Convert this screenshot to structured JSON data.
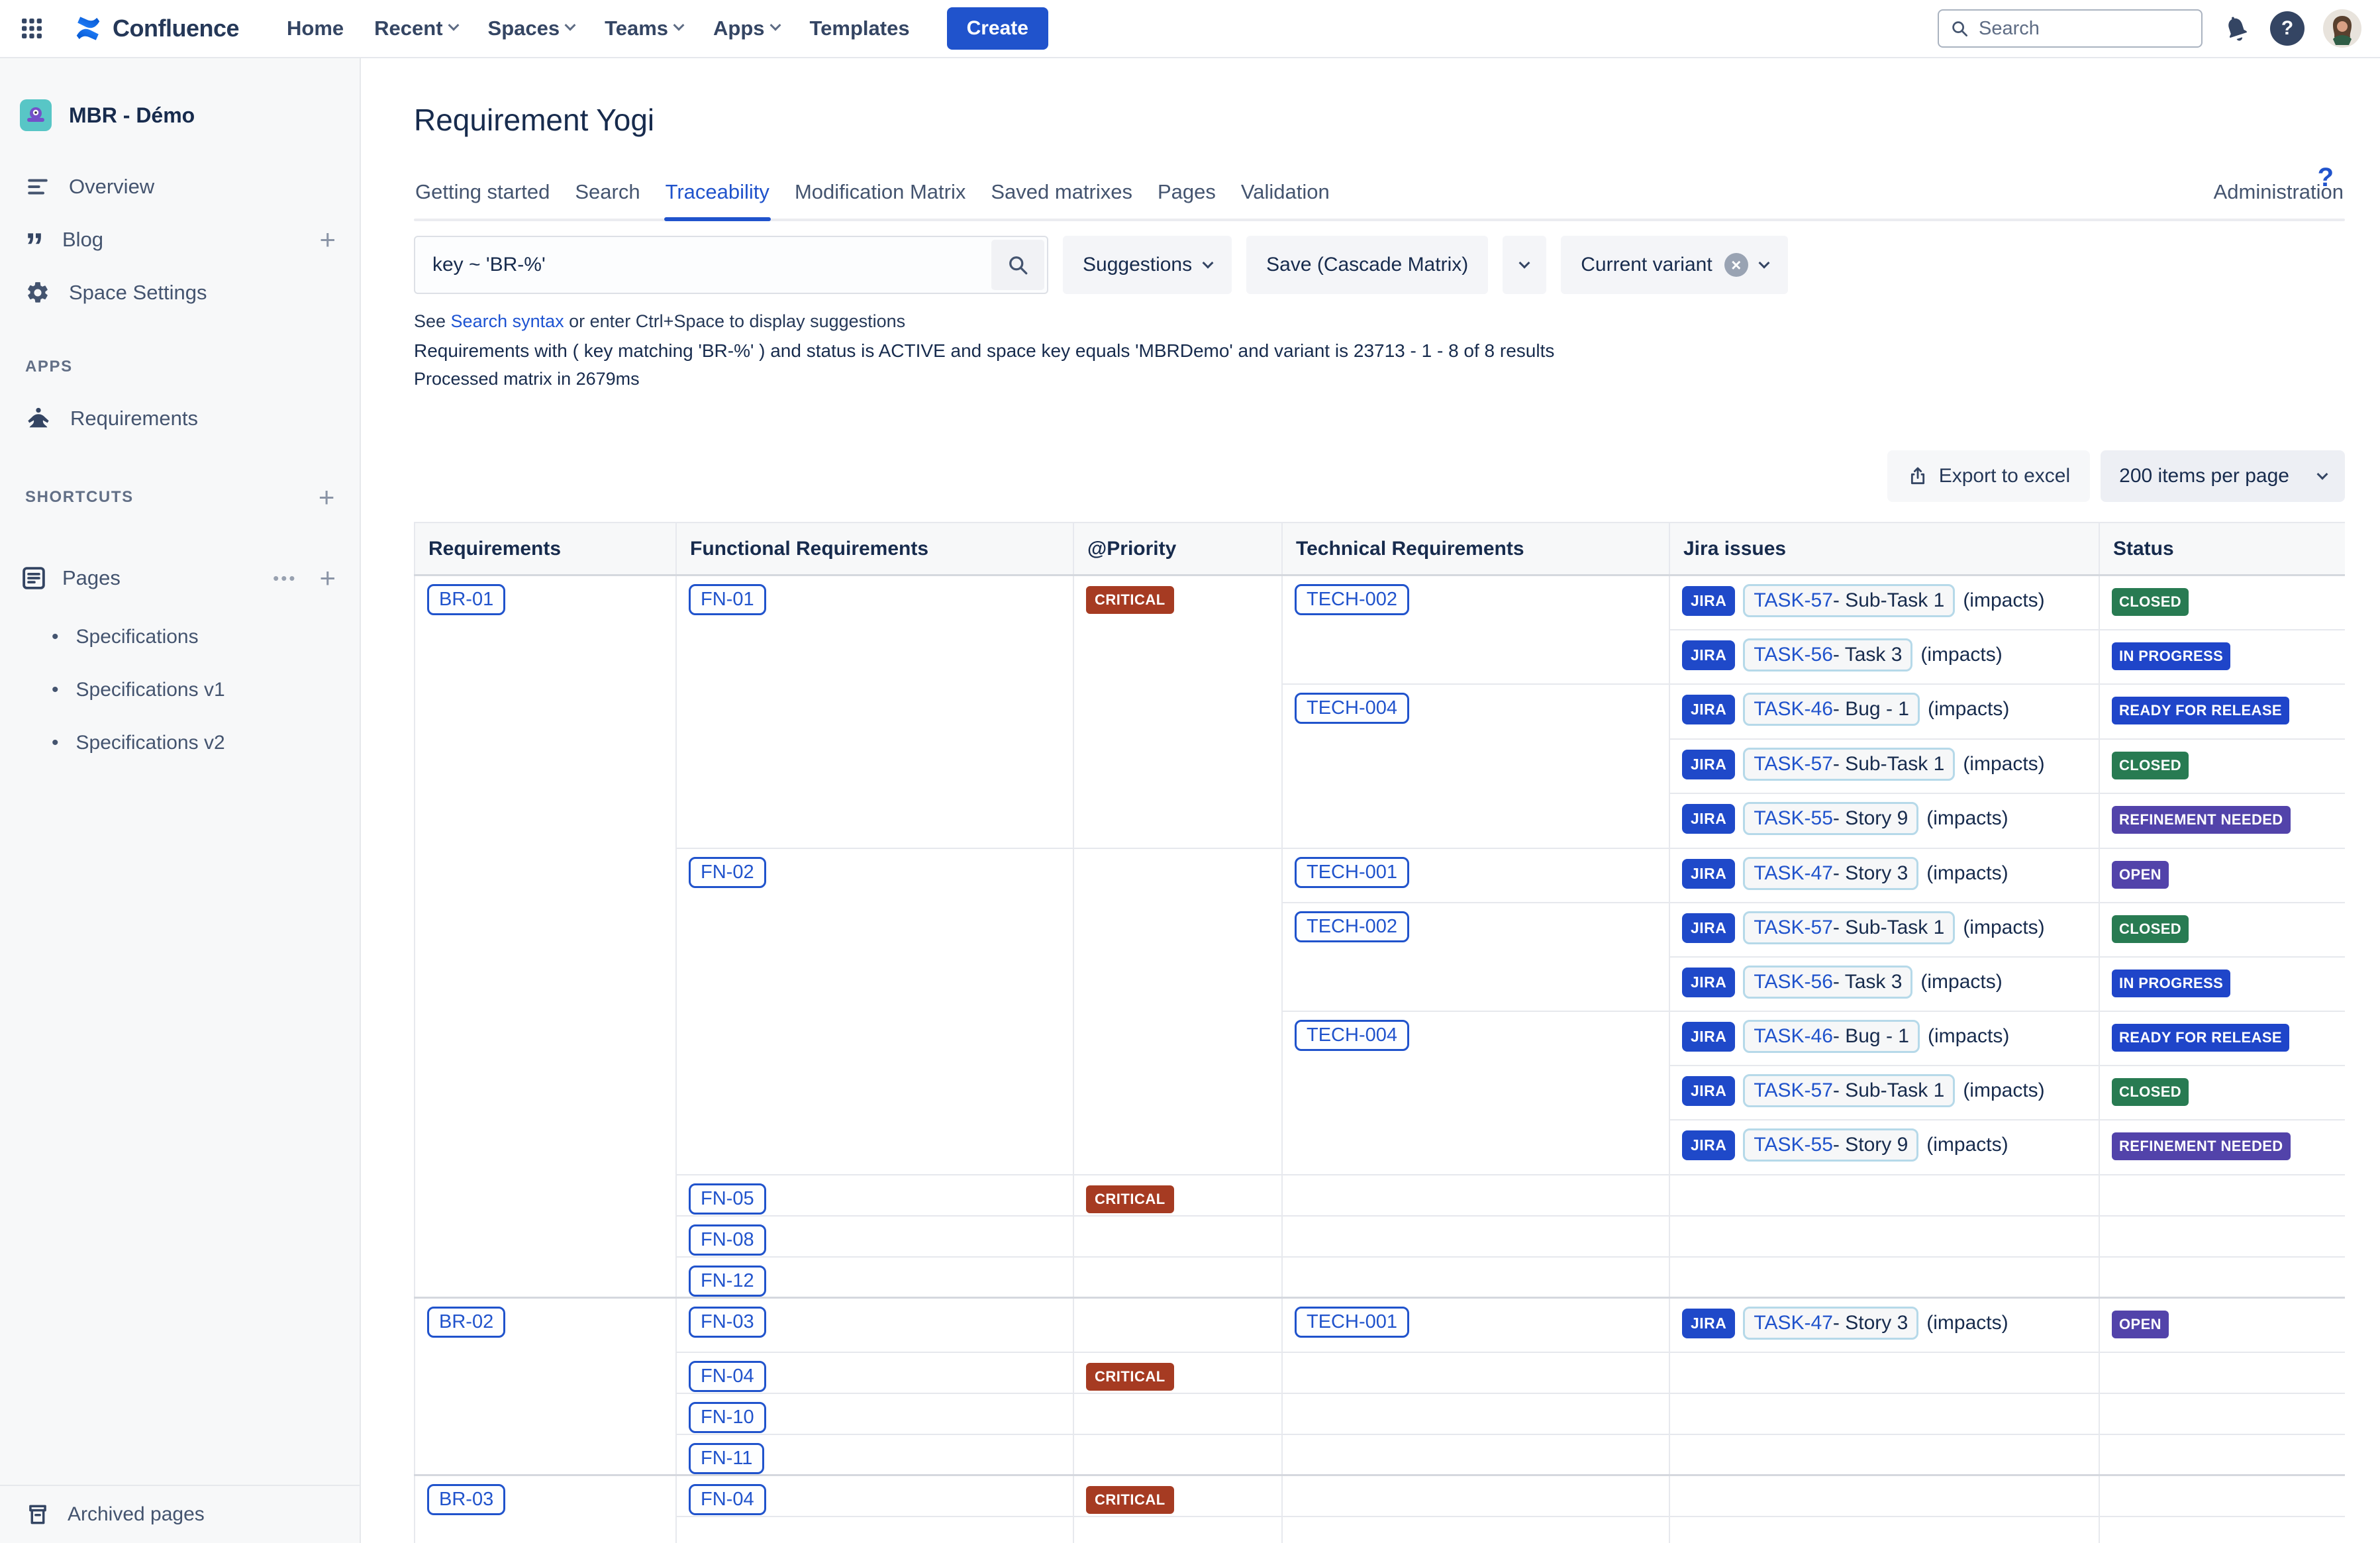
{
  "topnav": {
    "logo_label": "Confluence",
    "menu": [
      {
        "label": "Home",
        "chevron": false
      },
      {
        "label": "Recent",
        "chevron": true
      },
      {
        "label": "Spaces",
        "chevron": true
      },
      {
        "label": "Teams",
        "chevron": true
      },
      {
        "label": "Apps",
        "chevron": true
      },
      {
        "label": "Templates",
        "chevron": false
      }
    ],
    "create_label": "Create",
    "search_placeholder": "Search"
  },
  "sidebar": {
    "space_name": "MBR - Démo",
    "nav_items": [
      {
        "icon": "overview",
        "label": "Overview",
        "plus": false
      },
      {
        "icon": "blog",
        "label": "Blog",
        "plus": true
      },
      {
        "icon": "gear",
        "label": "Space Settings",
        "plus": false
      }
    ],
    "apps_label": "APPS",
    "apps_items": [
      {
        "icon": "requirements",
        "label": "Requirements",
        "plus": false
      }
    ],
    "shortcuts_label": "SHORTCUTS",
    "pages_label": "Pages",
    "pages_items": [
      "Specifications",
      "Specifications v1",
      "Specifications v2"
    ],
    "archived_label": "Archived pages"
  },
  "main": {
    "title": "Requirement Yogi",
    "help_glyph": "?",
    "tabs": [
      "Getting started",
      "Search",
      "Traceability",
      "Modification Matrix",
      "Saved matrixes",
      "Pages",
      "Validation"
    ],
    "active_tab": "Traceability",
    "admin_label": "Administration",
    "search_query": "key ~ 'BR-%'",
    "suggestions_label": "Suggestions",
    "save_label": "Save (Cascade Matrix)",
    "variant_label": "Current variant",
    "hint_prefix": "See ",
    "hint_link": "Search syntax",
    "hint_suffix": " or enter Ctrl+Space to display suggestions",
    "result_line": "Requirements with ( key matching 'BR-%' ) and status is ACTIVE and space key equals 'MBRDemo' and variant is 23713 - 1 - 8 of 8 results",
    "processed_line": "Processed matrix in 2679ms",
    "export_label": "Export to excel",
    "page_size_label": "200 items per page"
  },
  "icons": {
    "plus": "+",
    "more": "•••",
    "clear": "×",
    "bullet": "•",
    "help": "?"
  },
  "colors": {
    "brand_blue": "#2053cc",
    "link_blue": "#1d53d2",
    "jira_chip_blue": "#1f49c9",
    "critical_red": "#a63b22",
    "status_green": "#287b52",
    "status_blue": "#1f45c9",
    "status_purple": "#5243aa"
  },
  "table": {
    "headers": [
      "Requirements",
      "Functional Requirements",
      "@Priority",
      "Technical Requirements",
      "Jira issues",
      "Status"
    ],
    "jira_chip_label": "JIRA",
    "group_end_rows": [
      0,
      14,
      18
    ],
    "rows": [
      {
        "cells": [
          {
            "c": 1,
            "rs": 14,
            "t": "req",
            "v": "BR-01"
          },
          {
            "c": 2,
            "rs": 5,
            "t": "req",
            "v": "FN-01"
          },
          {
            "c": 3,
            "rs": 5,
            "t": "priority",
            "v": "CRITICAL"
          },
          {
            "c": 4,
            "rs": 2,
            "t": "req",
            "v": "TECH-002"
          },
          {
            "c": 5,
            "t": "jira",
            "k": "TASK-57",
            "s": "- Sub-Task 1",
            "x": "(impacts)"
          },
          {
            "c": 6,
            "t": "status",
            "v": "CLOSED",
            "cl": "green"
          }
        ]
      },
      {
        "cells": [
          {
            "c": 5,
            "t": "jira",
            "k": "TASK-56",
            "s": "- Task 3",
            "x": "(impacts)"
          },
          {
            "c": 6,
            "t": "status",
            "v": "IN PROGRESS",
            "cl": "blue"
          }
        ]
      },
      {
        "cells": [
          {
            "c": 4,
            "rs": 3,
            "t": "req",
            "v": "TECH-004"
          },
          {
            "c": 5,
            "t": "jira",
            "k": "TASK-46",
            "s": "- Bug - 1",
            "x": "(impacts)"
          },
          {
            "c": 6,
            "t": "status",
            "v": "READY FOR RELEASE",
            "cl": "blue"
          }
        ]
      },
      {
        "cells": [
          {
            "c": 5,
            "t": "jira",
            "k": "TASK-57",
            "s": "- Sub-Task 1",
            "x": "(impacts)"
          },
          {
            "c": 6,
            "t": "status",
            "v": "CLOSED",
            "cl": "green"
          }
        ]
      },
      {
        "cells": [
          {
            "c": 5,
            "t": "jira",
            "k": "TASK-55",
            "s": "- Story 9",
            "x": "(impacts)"
          },
          {
            "c": 6,
            "t": "status",
            "v": "REFINEMENT NEEDED",
            "cl": "purple"
          }
        ]
      },
      {
        "cells": [
          {
            "c": 2,
            "rs": 6,
            "t": "req",
            "v": "FN-02"
          },
          {
            "c": 3,
            "rs": 6,
            "t": "empty"
          },
          {
            "c": 4,
            "t": "req",
            "v": "TECH-001"
          },
          {
            "c": 5,
            "t": "jira",
            "k": "TASK-47",
            "s": "- Story 3",
            "x": "(impacts)"
          },
          {
            "c": 6,
            "t": "status",
            "v": "OPEN",
            "cl": "purple"
          }
        ]
      },
      {
        "cells": [
          {
            "c": 4,
            "rs": 2,
            "t": "req",
            "v": "TECH-002"
          },
          {
            "c": 5,
            "t": "jira",
            "k": "TASK-57",
            "s": "- Sub-Task 1",
            "x": "(impacts)"
          },
          {
            "c": 6,
            "t": "status",
            "v": "CLOSED",
            "cl": "green"
          }
        ]
      },
      {
        "cells": [
          {
            "c": 5,
            "t": "jira",
            "k": "TASK-56",
            "s": "- Task 3",
            "x": "(impacts)"
          },
          {
            "c": 6,
            "t": "status",
            "v": "IN PROGRESS",
            "cl": "blue"
          }
        ]
      },
      {
        "cells": [
          {
            "c": 4,
            "rs": 3,
            "t": "req",
            "v": "TECH-004"
          },
          {
            "c": 5,
            "t": "jira",
            "k": "TASK-46",
            "s": "- Bug - 1",
            "x": "(impacts)"
          },
          {
            "c": 6,
            "t": "status",
            "v": "READY FOR RELEASE",
            "cl": "blue"
          }
        ]
      },
      {
        "cells": [
          {
            "c": 5,
            "t": "jira",
            "k": "TASK-57",
            "s": "- Sub-Task 1",
            "x": "(impacts)"
          },
          {
            "c": 6,
            "t": "status",
            "v": "CLOSED",
            "cl": "green"
          }
        ]
      },
      {
        "cells": [
          {
            "c": 5,
            "t": "jira",
            "k": "TASK-55",
            "s": "- Story 9",
            "x": "(impacts)"
          },
          {
            "c": 6,
            "t": "status",
            "v": "REFINEMENT NEEDED",
            "cl": "purple"
          }
        ]
      },
      {
        "cells": [
          {
            "c": 2,
            "t": "req",
            "v": "FN-05"
          },
          {
            "c": 3,
            "t": "priority",
            "v": "CRITICAL"
          },
          {
            "c": 4,
            "t": "empty"
          },
          {
            "c": 5,
            "t": "empty"
          },
          {
            "c": 6,
            "t": "empty"
          }
        ]
      },
      {
        "cells": [
          {
            "c": 2,
            "t": "req",
            "v": "FN-08"
          },
          {
            "c": 3,
            "t": "empty"
          },
          {
            "c": 4,
            "t": "empty"
          },
          {
            "c": 5,
            "t": "empty"
          },
          {
            "c": 6,
            "t": "empty"
          }
        ]
      },
      {
        "cells": [
          {
            "c": 2,
            "t": "req",
            "v": "FN-12"
          },
          {
            "c": 3,
            "t": "empty"
          },
          {
            "c": 4,
            "t": "empty"
          },
          {
            "c": 5,
            "t": "empty"
          },
          {
            "c": 6,
            "t": "empty"
          }
        ]
      },
      {
        "cells": [
          {
            "c": 1,
            "rs": 4,
            "t": "req",
            "v": "BR-02"
          },
          {
            "c": 2,
            "t": "req",
            "v": "FN-03"
          },
          {
            "c": 3,
            "t": "empty"
          },
          {
            "c": 4,
            "t": "req",
            "v": "TECH-001"
          },
          {
            "c": 5,
            "t": "jira",
            "k": "TASK-47",
            "s": "- Story 3",
            "x": "(impacts)"
          },
          {
            "c": 6,
            "t": "status",
            "v": "OPEN",
            "cl": "purple"
          }
        ]
      },
      {
        "cells": [
          {
            "c": 2,
            "t": "req",
            "v": "FN-04"
          },
          {
            "c": 3,
            "t": "priority",
            "v": "CRITICAL"
          },
          {
            "c": 4,
            "t": "empty"
          },
          {
            "c": 5,
            "t": "empty"
          },
          {
            "c": 6,
            "t": "empty"
          }
        ]
      },
      {
        "cells": [
          {
            "c": 2,
            "t": "req",
            "v": "FN-10"
          },
          {
            "c": 3,
            "t": "empty"
          },
          {
            "c": 4,
            "t": "empty"
          },
          {
            "c": 5,
            "t": "empty"
          },
          {
            "c": 6,
            "t": "empty"
          }
        ]
      },
      {
        "cells": [
          {
            "c": 2,
            "t": "req",
            "v": "FN-11"
          },
          {
            "c": 3,
            "t": "empty"
          },
          {
            "c": 4,
            "t": "empty"
          },
          {
            "c": 5,
            "t": "empty"
          },
          {
            "c": 6,
            "t": "empty"
          }
        ]
      },
      {
        "cells": [
          {
            "c": 1,
            "rs": 2,
            "t": "req",
            "v": "BR-03"
          },
          {
            "c": 2,
            "t": "req",
            "v": "FN-04"
          },
          {
            "c": 3,
            "t": "priority",
            "v": "CRITICAL"
          },
          {
            "c": 4,
            "t": "empty"
          },
          {
            "c": 5,
            "t": "empty"
          },
          {
            "c": 6,
            "t": "empty"
          }
        ]
      },
      {
        "cells": [
          {
            "c": 2,
            "t": "empty"
          },
          {
            "c": 3,
            "t": "empty"
          },
          {
            "c": 4,
            "t": "empty"
          },
          {
            "c": 5,
            "t": "empty"
          },
          {
            "c": 6,
            "t": "empty"
          }
        ]
      }
    ]
  }
}
